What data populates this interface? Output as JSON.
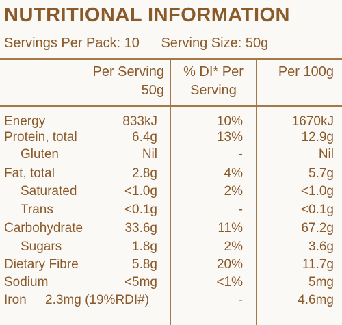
{
  "title": "NUTRITIONAL INFORMATION",
  "servings": {
    "per_pack": "Servings Per Pack: 10",
    "size": "Serving Size: 50g"
  },
  "headers": {
    "per_serving_line1": "Per Serving",
    "per_serving_line2": "50g",
    "di_line1": "% DI* Per",
    "di_line2": "Serving",
    "per100": "Per 100g"
  },
  "rows": [
    {
      "name": "Energy",
      "per_serving": "833kJ",
      "di": "10%",
      "per100": "1670kJ"
    },
    {
      "name": "Protein, total",
      "per_serving": "6.4g",
      "di": "13%",
      "per100": "12.9g"
    },
    {
      "name": "Gluten",
      "per_serving": "Nil",
      "di": "-",
      "per100": "Nil"
    },
    {
      "name": "Fat, total",
      "per_serving": "2.8g",
      "di": "4%",
      "per100": "5.7g"
    },
    {
      "name": "Saturated",
      "per_serving": "<1.0g",
      "di": "2%",
      "per100": "<1.0g"
    },
    {
      "name": "Trans",
      "per_serving": "<0.1g",
      "di": "-",
      "per100": "<0.1g"
    },
    {
      "name": "Carbohydrate",
      "per_serving": "33.6g",
      "di": "11%",
      "per100": "67.2g"
    },
    {
      "name": "Sugars",
      "per_serving": "1.8g",
      "di": "2%",
      "per100": "3.6g"
    },
    {
      "name": "Dietary Fibre",
      "per_serving": "5.8g",
      "di": "20%",
      "per100": "11.7g"
    },
    {
      "name": "Sodium",
      "per_serving": "<5mg",
      "di": "<1%",
      "per100": "5mg"
    },
    {
      "name": "Iron",
      "per_serving": "2.3mg (19%RDI#)",
      "di": "-",
      "per100": "4.6mg"
    }
  ]
}
